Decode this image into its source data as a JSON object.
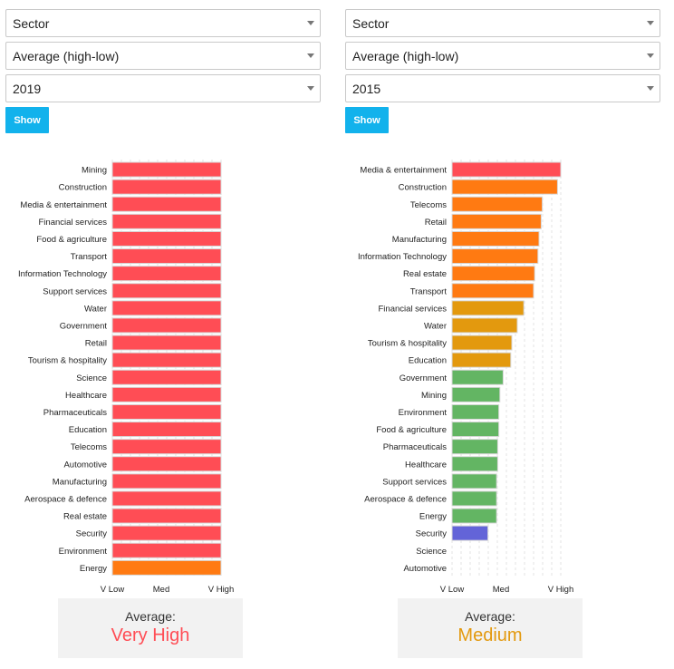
{
  "colors": {
    "very_high": "#ff4d55",
    "high": "#ff7a12",
    "medium": "#e3990e",
    "low": "#63b563",
    "very_low": "#6364d8",
    "button": "#12b2ec"
  },
  "left_panel": {
    "selects": [
      "Sector",
      "Average (high-low)",
      "2019"
    ],
    "show_label": "Show",
    "average_label": "Average:",
    "average_value": "Very High",
    "average_color": "#ff4d55",
    "axis_ticks": [
      "V Low",
      "Med",
      "V High"
    ]
  },
  "right_panel": {
    "selects": [
      "Sector",
      "Average (high-low)",
      "2015"
    ],
    "show_label": "Show",
    "average_label": "Average:",
    "average_value": "Medium",
    "average_color": "#e3990e",
    "axis_ticks": [
      "V Low",
      "Med",
      "V High"
    ]
  },
  "chart_data": [
    {
      "type": "bar",
      "orientation": "horizontal",
      "title": "",
      "x_scale": [
        "V Low",
        "Med",
        "V High"
      ],
      "xlim": [
        0,
        1
      ],
      "categories": [
        "Mining",
        "Construction",
        "Media & entertainment",
        "Financial services",
        "Food & agriculture",
        "Transport",
        "Information Technology",
        "Support services",
        "Water",
        "Government",
        "Retail",
        "Tourism & hospitality",
        "Science",
        "Healthcare",
        "Pharmaceuticals",
        "Education",
        "Telecoms",
        "Automotive",
        "Manufacturing",
        "Aerospace & defence",
        "Real estate",
        "Security",
        "Environment",
        "Energy"
      ],
      "values": [
        1,
        1,
        1,
        1,
        1,
        1,
        1,
        1,
        1,
        1,
        1,
        1,
        1,
        1,
        1,
        1,
        1,
        1,
        1,
        1,
        1,
        1,
        1,
        1
      ],
      "colors": [
        "#ff4d55",
        "#ff4d55",
        "#ff4d55",
        "#ff4d55",
        "#ff4d55",
        "#ff4d55",
        "#ff4d55",
        "#ff4d55",
        "#ff4d55",
        "#ff4d55",
        "#ff4d55",
        "#ff4d55",
        "#ff4d55",
        "#ff4d55",
        "#ff4d55",
        "#ff4d55",
        "#ff4d55",
        "#ff4d55",
        "#ff4d55",
        "#ff4d55",
        "#ff4d55",
        "#ff4d55",
        "#ff4d55",
        "#ff7a12"
      ]
    },
    {
      "type": "bar",
      "orientation": "horizontal",
      "title": "",
      "x_scale": [
        "V Low",
        "Med",
        "V High"
      ],
      "xlim": [
        0,
        1
      ],
      "categories": [
        "Media & entertainment",
        "Construction",
        "Telecoms",
        "Retail",
        "Manufacturing",
        "Information Technology",
        "Real estate",
        "Transport",
        "Financial services",
        "Water",
        "Tourism & hospitality",
        "Education",
        "Government",
        "Mining",
        "Environment",
        "Food & agriculture",
        "Pharmaceuticals",
        "Healthcare",
        "Support services",
        "Aerospace & defence",
        "Energy",
        "Security",
        "Science",
        "Automotive"
      ],
      "values": [
        1.0,
        0.97,
        0.83,
        0.82,
        0.8,
        0.79,
        0.76,
        0.75,
        0.66,
        0.6,
        0.55,
        0.54,
        0.47,
        0.44,
        0.43,
        0.43,
        0.42,
        0.42,
        0.41,
        0.41,
        0.41,
        0.33,
        0,
        0
      ],
      "colors": [
        "#ff4d55",
        "#ff7a12",
        "#ff7a12",
        "#ff7a12",
        "#ff7a12",
        "#ff7a12",
        "#ff7a12",
        "#ff7a12",
        "#e3990e",
        "#e3990e",
        "#e3990e",
        "#e3990e",
        "#63b563",
        "#63b563",
        "#63b563",
        "#63b563",
        "#63b563",
        "#63b563",
        "#63b563",
        "#63b563",
        "#63b563",
        "#6364d8",
        "#63b563",
        "#63b563"
      ]
    }
  ]
}
